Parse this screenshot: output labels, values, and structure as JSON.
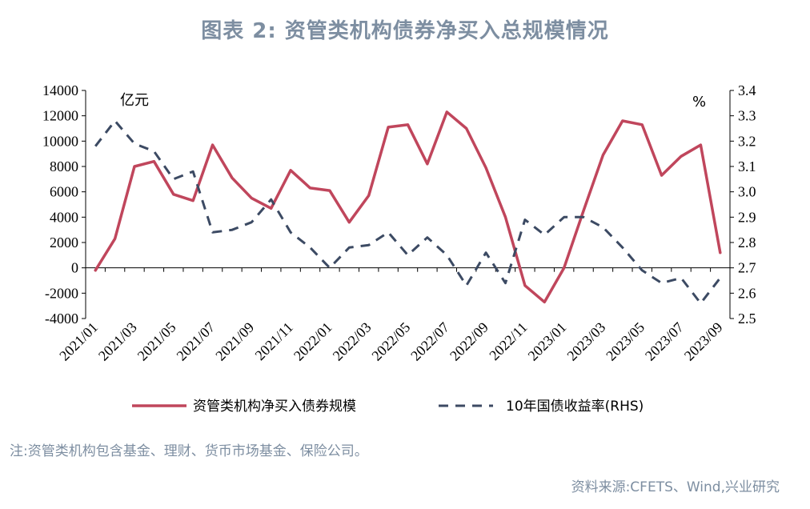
{
  "title": "图表 2:  资管类机构债券净买入总规模情况",
  "note": "注:资管类机构包含基金、理财、货币市场基金、保险公司。",
  "source": "资料来源:CFETS、Wind,兴业研究",
  "chart_data": {
    "type": "line",
    "left_unit": "亿元",
    "right_unit": "%",
    "x": [
      "2021/01",
      "2021/02",
      "2021/03",
      "2021/04",
      "2021/05",
      "2021/06",
      "2021/07",
      "2021/08",
      "2021/09",
      "2021/10",
      "2021/11",
      "2021/12",
      "2022/01",
      "2022/02",
      "2022/03",
      "2022/04",
      "2022/05",
      "2022/06",
      "2022/07",
      "2022/08",
      "2022/09",
      "2022/10",
      "2022/11",
      "2022/12",
      "2023/01",
      "2023/02",
      "2023/03",
      "2023/04",
      "2023/05",
      "2023/06",
      "2023/07",
      "2023/08",
      "2023/09"
    ],
    "x_tick_labels": [
      "2021/01",
      "2021/03",
      "2021/05",
      "2021/07",
      "2021/09",
      "2021/11",
      "2022/01",
      "2022/03",
      "2022/05",
      "2022/07",
      "2022/09",
      "2022/11",
      "2023/01",
      "2023/03",
      "2023/05",
      "2023/07",
      "2023/09"
    ],
    "y_left": {
      "range": [
        -4000,
        14000
      ],
      "ticks": [
        -4000,
        -2000,
        0,
        2000,
        4000,
        6000,
        8000,
        10000,
        12000,
        14000
      ]
    },
    "y_right": {
      "range": [
        2.5,
        3.4
      ],
      "ticks": [
        "2.5",
        "2.6",
        "2.7",
        "2.8",
        "2.9",
        "3.0",
        "3.1",
        "3.2",
        "3.3",
        "3.4"
      ]
    },
    "series": [
      {
        "name": "资管类机构净买入债券规模",
        "axis": "left",
        "color": "#c0465c",
        "style": "solid",
        "values": [
          -200,
          2300,
          8000,
          8400,
          5800,
          5300,
          9700,
          7100,
          5500,
          4700,
          7700,
          6300,
          6100,
          3600,
          5700,
          11100,
          11300,
          8200,
          12300,
          11000,
          7900,
          4000,
          -1400,
          -2700,
          0,
          4500,
          8900,
          11600,
          11300,
          7300,
          8800,
          9700,
          1200
        ]
      },
      {
        "name": "10年国债收益率(RHS)",
        "axis": "right",
        "color": "#3c4a63",
        "style": "dashed",
        "values": [
          3.18,
          3.28,
          3.19,
          3.16,
          3.05,
          3.08,
          2.84,
          2.85,
          2.88,
          2.97,
          2.84,
          2.78,
          2.7,
          2.78,
          2.79,
          2.84,
          2.75,
          2.82,
          2.75,
          2.63,
          2.76,
          2.64,
          2.89,
          2.83,
          2.9,
          2.9,
          2.86,
          2.78,
          2.69,
          2.64,
          2.66,
          2.56,
          2.66
        ]
      }
    ],
    "legend_position": "bottom",
    "grid": false
  }
}
